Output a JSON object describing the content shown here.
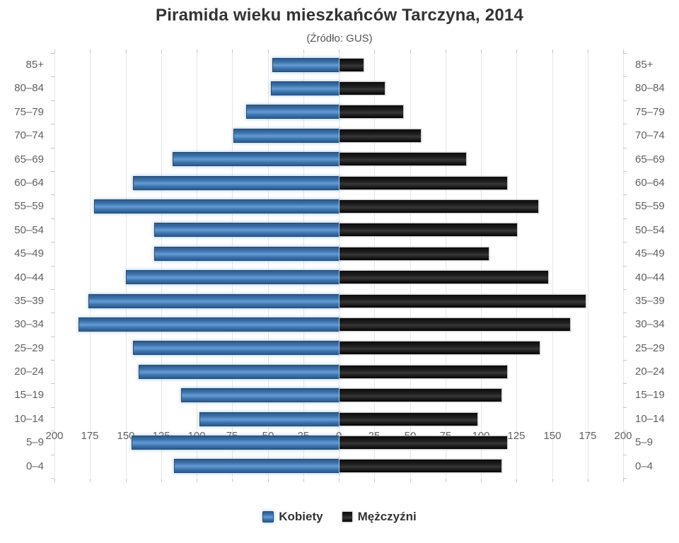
{
  "chart_data": {
    "type": "bar",
    "variant": "population-pyramid",
    "title": "Piramida wieku mieszkańców Tarczyna, 2014",
    "subtitle": "(Źródło: GUS)",
    "grid": true,
    "legend_position": "bottom",
    "categories": [
      "85+",
      "80–84",
      "75–79",
      "70–74",
      "65–69",
      "60–64",
      "55–59",
      "50–54",
      "45–49",
      "40–44",
      "35–39",
      "30–34",
      "25–29",
      "20–24",
      "15–19",
      "10–14",
      "5–9",
      "0–4"
    ],
    "series": [
      {
        "name": "Kobiety",
        "side": "left",
        "color": "#4879ad",
        "values": [
          47,
          48,
          65,
          74,
          117,
          145,
          172,
          130,
          130,
          150,
          176,
          183,
          145,
          141,
          111,
          98,
          146,
          116
        ]
      },
      {
        "name": "Mężczyźni",
        "side": "right",
        "color": "#1b1b1b",
        "values": [
          17,
          32,
          45,
          57,
          89,
          118,
          140,
          125,
          105,
          147,
          173,
          162,
          141,
          118,
          114,
          97,
          118,
          114
        ]
      }
    ],
    "x_axis": {
      "max": 200,
      "step": 25,
      "ticks": [
        "200",
        "175",
        "150",
        "125",
        "100",
        "75",
        "50",
        "25",
        "0",
        "25",
        "50",
        "75",
        "100",
        "125",
        "150",
        "175",
        "200"
      ]
    }
  },
  "colors": {
    "background": "#ffffff",
    "grid_line": "#e6e6e6",
    "axis_text": "#606060",
    "title_text": "#333333",
    "legend_text": "#333333",
    "kobiety_bar": "#4879ad",
    "mezczyzni_bar": "#1b1b1b"
  }
}
